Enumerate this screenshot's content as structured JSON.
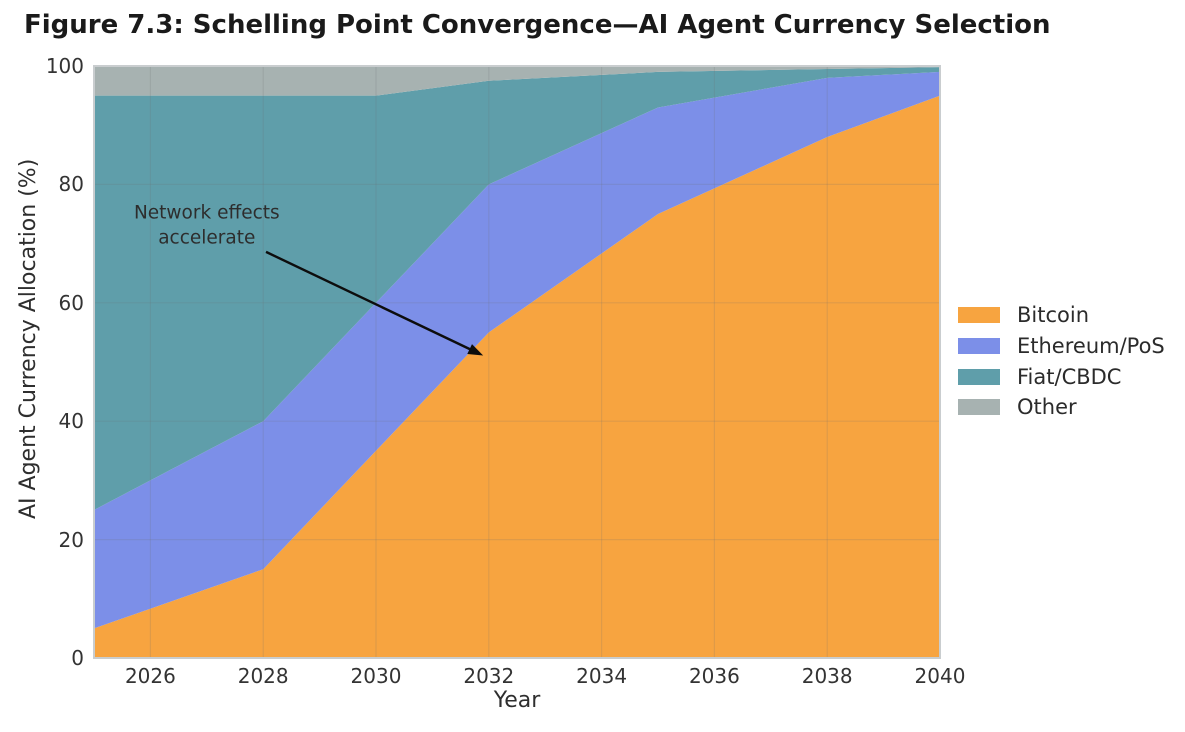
{
  "chart_data": {
    "type": "area",
    "stacked": true,
    "title": "Figure 7.3: Schelling Point Convergence—AI Agent Currency Selection",
    "xlabel": "Year",
    "ylabel": "AI Agent Currency Allocation (%)",
    "x": [
      2025,
      2028,
      2030,
      2032,
      2035,
      2038,
      2040
    ],
    "series": [
      {
        "name": "Bitcoin",
        "color": "#f7a440",
        "values": [
          5,
          15,
          35,
          55,
          75,
          88,
          95
        ]
      },
      {
        "name": "Ethereum/PoS",
        "color": "#7c8fe8",
        "values": [
          20,
          25,
          25,
          25,
          18,
          10,
          4
        ]
      },
      {
        "name": "Fiat/CBDC",
        "color": "#5f9eaa",
        "values": [
          70,
          55,
          35,
          17.5,
          6,
          1.5,
          0.8
        ]
      },
      {
        "name": "Other",
        "color": "#a7b2b1",
        "values": [
          5,
          5,
          5,
          2.5,
          1,
          0.5,
          0.2
        ]
      }
    ],
    "xlim": [
      2025,
      2040
    ],
    "ylim": [
      0,
      100
    ],
    "xticks": [
      2026,
      2028,
      2030,
      2032,
      2034,
      2036,
      2038,
      2040
    ],
    "yticks": [
      0,
      20,
      40,
      60,
      80,
      100
    ],
    "grid": true,
    "legend_position": "center-right",
    "annotation": {
      "text": "Network effects\naccelerate",
      "text_xy": [
        2027.0,
        72.9
      ],
      "arrow_from": [
        2028.05,
        68.6
      ],
      "arrow_to": [
        2031.9,
        51.1
      ]
    }
  }
}
